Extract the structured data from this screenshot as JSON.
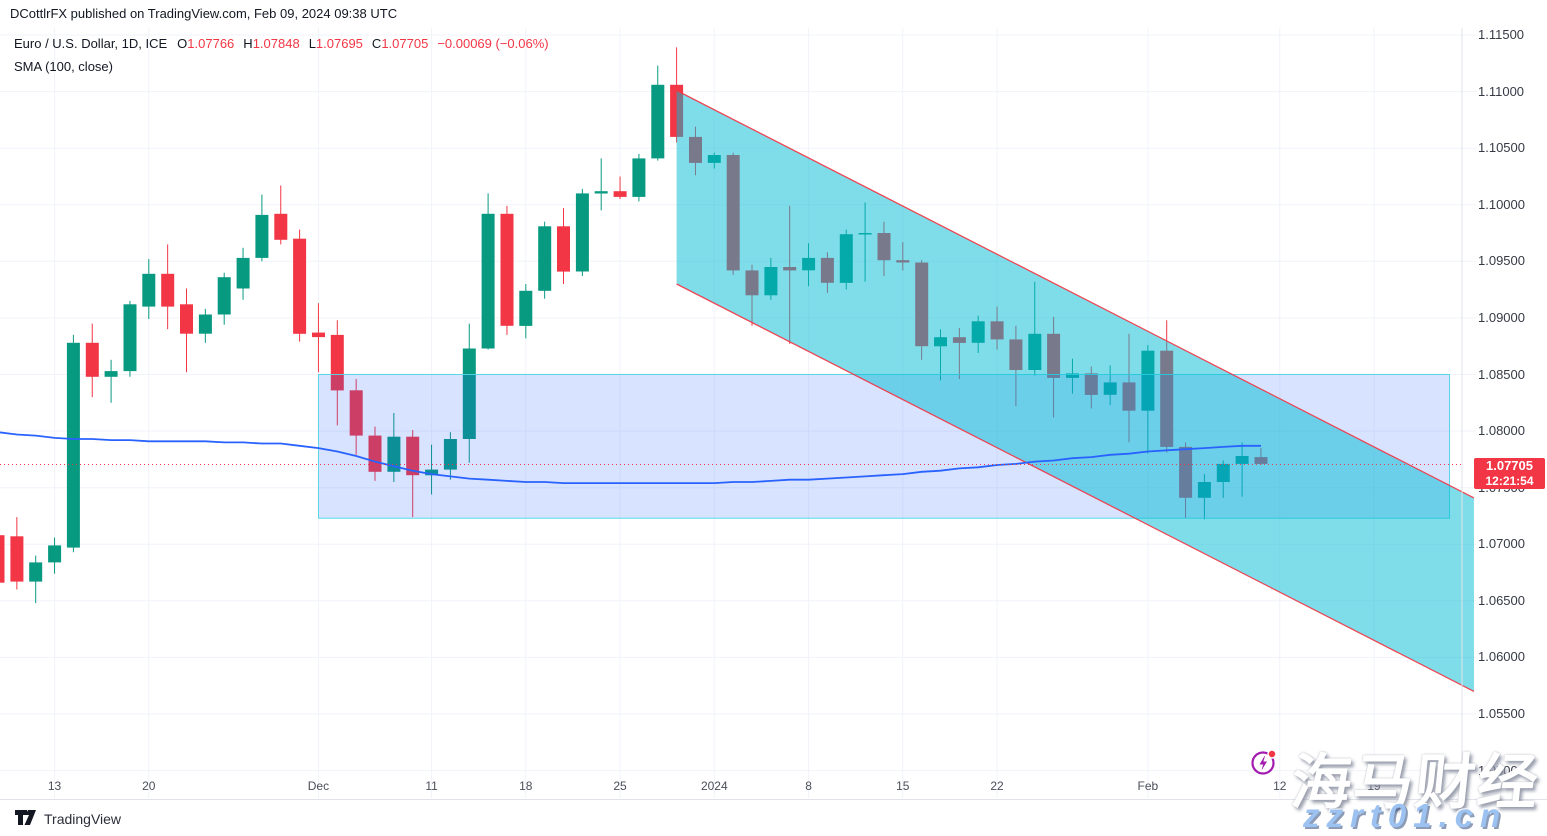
{
  "attribution": "DCottlrFX published on TradingView.com, Feb 09, 2024 09:38 UTC",
  "legend": {
    "symbol": "Euro / U.S. Dollar, 1D, ICE",
    "ohlc": [
      {
        "k": "O",
        "v": "1.07766"
      },
      {
        "k": "H",
        "v": "1.07848"
      },
      {
        "k": "L",
        "v": "1.07695"
      },
      {
        "k": "C",
        "v": "1.07705"
      }
    ],
    "change": "−0.00069 (−0.06%)",
    "indicator": "SMA (100, close)"
  },
  "price_label": {
    "price": "1.07705",
    "countdown": "12:21:54"
  },
  "price_axis": {
    "ticks": [
      "1.11500",
      "1.11000",
      "1.10500",
      "1.10000",
      "1.09500",
      "1.09000",
      "1.08500",
      "1.08000",
      "1.07500",
      "1.07000",
      "1.06500",
      "1.06000",
      "1.05500",
      "1.05000"
    ]
  },
  "time_axis": {
    "ticks": [
      {
        "label": "13",
        "index": 3
      },
      {
        "label": "20",
        "index": 8
      },
      {
        "label": "Dec",
        "index": 17
      },
      {
        "label": "11",
        "index": 23
      },
      {
        "label": "18",
        "index": 28
      },
      {
        "label": "25",
        "index": 33
      },
      {
        "label": "2024",
        "index": 38
      },
      {
        "label": "8",
        "index": 43
      },
      {
        "label": "15",
        "index": 48
      },
      {
        "label": "22",
        "index": 53
      },
      {
        "label": "Feb",
        "index": 61
      },
      {
        "label": "12",
        "index": 68
      },
      {
        "label": "19",
        "index": 73
      }
    ]
  },
  "footer": {
    "logo_text": "TradingView"
  },
  "watermark": {
    "brand": "海马财经",
    "site": "zzrt01.cn"
  },
  "colors": {
    "background": "#ffffff",
    "grid": "#f0f3fa",
    "axis_text": "#363a45",
    "text": "#131722",
    "up": "#089981",
    "down": "#f23645",
    "sma": "#2962ff",
    "label_bg": "#f23645",
    "separator": "#e0e3eb"
  },
  "chart_data": {
    "type": "candlestick",
    "symbol": "Euro / U.S. Dollar",
    "interval": "1D",
    "exchange": "ICE",
    "ylim": [
      1.05,
      1.115
    ],
    "current_price": 1.07705,
    "ohlc": [
      [
        "Nov 8",
        1.0708,
        1.0712,
        1.0662,
        1.0666
      ],
      [
        "Nov 9",
        1.0707,
        1.0724,
        1.066,
        1.0667
      ],
      [
        "Nov 10",
        1.0667,
        1.069,
        1.0648,
        1.0684
      ],
      [
        "Nov 13",
        1.0684,
        1.0706,
        1.0674,
        1.0699
      ],
      [
        "Nov 14",
        1.0697,
        1.0885,
        1.0693,
        1.0878
      ],
      [
        "Nov 15",
        1.0878,
        1.0895,
        1.083,
        1.0848
      ],
      [
        "Nov 16",
        1.0848,
        1.0863,
        1.0825,
        1.0853
      ],
      [
        "Nov 17",
        1.0853,
        1.0915,
        1.0848,
        1.0912
      ],
      [
        "Nov 20",
        1.091,
        1.0952,
        1.0899,
        1.0939
      ],
      [
        "Nov 21",
        1.0939,
        1.0965,
        1.089,
        1.091
      ],
      [
        "Nov 22",
        1.0912,
        1.0926,
        1.0852,
        1.0886
      ],
      [
        "Nov 23",
        1.0886,
        1.0908,
        1.0878,
        1.0903
      ],
      [
        "Nov 24",
        1.0903,
        1.094,
        1.0894,
        1.0936
      ],
      [
        "Nov 27",
        1.0926,
        1.0962,
        1.0916,
        1.0953
      ],
      [
        "Nov 28",
        1.0953,
        1.1009,
        1.095,
        1.0991
      ],
      [
        "Nov 29",
        1.0992,
        1.1017,
        1.0965,
        1.0969
      ],
      [
        "Nov 30",
        1.097,
        1.0978,
        1.0879,
        1.0886
      ],
      [
        "Dec 1",
        1.0887,
        1.0913,
        1.0852,
        1.0883
      ],
      [
        "Dec 4",
        1.0885,
        1.0898,
        1.0805,
        1.0836
      ],
      [
        "Dec 5",
        1.0836,
        1.0846,
        1.0779,
        1.0796
      ],
      [
        "Dec 6",
        1.0796,
        1.0804,
        1.0756,
        1.0764
      ],
      [
        "Dec 7",
        1.0764,
        1.0816,
        1.0755,
        1.0795
      ],
      [
        "Dec 8",
        1.0795,
        1.0801,
        1.0724,
        1.0761
      ],
      [
        "Dec 11",
        1.0761,
        1.0788,
        1.0744,
        1.0766
      ],
      [
        "Dec 12",
        1.0766,
        1.0799,
        1.0757,
        1.0793
      ],
      [
        "Dec 13",
        1.0793,
        1.0895,
        1.0772,
        1.0873
      ],
      [
        "Dec 14",
        1.0873,
        1.101,
        1.0872,
        1.0992
      ],
      [
        "Dec 15",
        1.0992,
        1.0999,
        1.0885,
        1.0893
      ],
      [
        "Dec 18",
        1.0893,
        1.093,
        1.0882,
        1.0924
      ],
      [
        "Dec 19",
        1.0924,
        1.0985,
        1.0917,
        1.0981
      ],
      [
        "Dec 20",
        1.0981,
        1.0997,
        1.093,
        1.0941
      ],
      [
        "Dec 21",
        1.0941,
        1.1014,
        1.0937,
        1.101
      ],
      [
        "Dec 22",
        1.101,
        1.1041,
        1.0995,
        1.1012
      ],
      [
        "Dec 25",
        1.1012,
        1.1025,
        1.1005,
        1.1007
      ],
      [
        "Dec 26",
        1.1007,
        1.1045,
        1.1003,
        1.1041
      ],
      [
        "Dec 27",
        1.1041,
        1.1123,
        1.1039,
        1.1106
      ],
      [
        "Dec 28",
        1.1106,
        1.1139,
        1.1055,
        1.106
      ],
      [
        "Dec 29",
        1.106,
        1.1069,
        1.1026,
        1.1037
      ],
      [
        "Jan 1",
        1.1037,
        1.1046,
        1.1032,
        1.1044
      ],
      [
        "Jan 2",
        1.1044,
        1.1046,
        1.0938,
        1.0942
      ],
      [
        "Jan 3",
        1.0942,
        1.0947,
        1.0893,
        1.092
      ],
      [
        "Jan 4",
        1.092,
        1.0953,
        1.0916,
        1.0945
      ],
      [
        "Jan 5",
        1.0945,
        1.0999,
        1.0877,
        1.0942
      ],
      [
        "Jan 8",
        1.0942,
        1.0966,
        1.0928,
        1.0953
      ],
      [
        "Jan 9",
        1.0953,
        1.0958,
        1.0922,
        1.0931
      ],
      [
        "Jan 10",
        1.0931,
        1.0978,
        1.0925,
        1.0974
      ],
      [
        "Jan 11",
        1.0974,
        1.1002,
        1.0932,
        1.0975
      ],
      [
        "Jan 12",
        1.0975,
        1.0985,
        1.0937,
        1.0951
      ],
      [
        "Jan 15",
        1.0951,
        1.0967,
        1.0942,
        1.0949
      ],
      [
        "Jan 16",
        1.0949,
        1.0951,
        1.0863,
        1.0875
      ],
      [
        "Jan 17",
        1.0875,
        1.089,
        1.0845,
        1.0883
      ],
      [
        "Jan 18",
        1.0883,
        1.0891,
        1.0846,
        1.0878
      ],
      [
        "Jan 19",
        1.0878,
        1.0902,
        1.0869,
        1.0897
      ],
      [
        "Jan 22",
        1.0897,
        1.091,
        1.0872,
        1.0881
      ],
      [
        "Jan 23",
        1.0881,
        1.0893,
        1.0822,
        1.0854
      ],
      [
        "Jan 24",
        1.0854,
        1.0932,
        1.0849,
        1.0886
      ],
      [
        "Jan 25",
        1.0886,
        1.0901,
        1.0812,
        1.0847
      ],
      [
        "Jan 26",
        1.0847,
        1.0864,
        1.0833,
        1.0851
      ],
      [
        "Jan 29",
        1.0851,
        1.0857,
        1.082,
        1.0832
      ],
      [
        "Jan 30",
        1.0832,
        1.0858,
        1.0823,
        1.0843
      ],
      [
        "Jan 31",
        1.0843,
        1.0886,
        1.079,
        1.0818
      ],
      [
        "Feb 1",
        1.0818,
        1.0876,
        1.078,
        1.0871
      ],
      [
        "Feb 2",
        1.0871,
        1.0898,
        1.0781,
        1.0786
      ],
      [
        "Feb 5",
        1.0786,
        1.079,
        1.0723,
        1.0741
      ],
      [
        "Feb 6",
        1.0741,
        1.0762,
        1.0722,
        1.0755
      ],
      [
        "Feb 7",
        1.0755,
        1.0774,
        1.0741,
        1.0771
      ],
      [
        "Feb 8",
        1.0771,
        1.079,
        1.0742,
        1.0778
      ],
      [
        "Feb 9",
        1.0777,
        1.0785,
        1.077,
        1.0771
      ]
    ],
    "sma_100": [
      1.0799,
      1.0797,
      1.0796,
      1.0794,
      1.0793,
      1.0793,
      1.0792,
      1.0792,
      1.0791,
      1.0791,
      1.0791,
      1.0791,
      1.079,
      1.079,
      1.0789,
      1.0789,
      1.0787,
      1.0785,
      1.0782,
      1.0778,
      1.0773,
      1.0769,
      1.0765,
      1.0762,
      1.076,
      1.0758,
      1.0757,
      1.0756,
      1.0755,
      1.0755,
      1.0754,
      1.0754,
      1.0754,
      1.0754,
      1.0754,
      1.0754,
      1.0754,
      1.0754,
      1.0754,
      1.0755,
      1.0755,
      1.0756,
      1.0757,
      1.0757,
      1.0758,
      1.0759,
      1.076,
      1.0761,
      1.0762,
      1.0764,
      1.0765,
      1.0767,
      1.0768,
      1.077,
      1.0771,
      1.0773,
      1.0774,
      1.0776,
      1.0777,
      1.0779,
      1.078,
      1.0782,
      1.0783,
      1.0784,
      1.0785,
      1.0786,
      1.0787,
      1.0787
    ],
    "annotations": {
      "channel": {
        "type": "descending-parallel-channel",
        "start_index": 36,
        "end_index": 78.3,
        "top_start_price": 1.1101,
        "top_end_price": 1.0741,
        "bottom_start_price": 1.093,
        "bottom_end_price": 1.057,
        "fill": "rgba(0,188,212,0.5)",
        "border": "#f23645"
      },
      "rectangle": {
        "type": "support-zone-rectangle",
        "start_index": 17,
        "end_index": 77,
        "top_price": 1.085,
        "bottom_price": 1.0723,
        "fill": "rgba(41,98,255,0.18)",
        "border": "rgba(80,214,230,0.95)"
      }
    }
  }
}
